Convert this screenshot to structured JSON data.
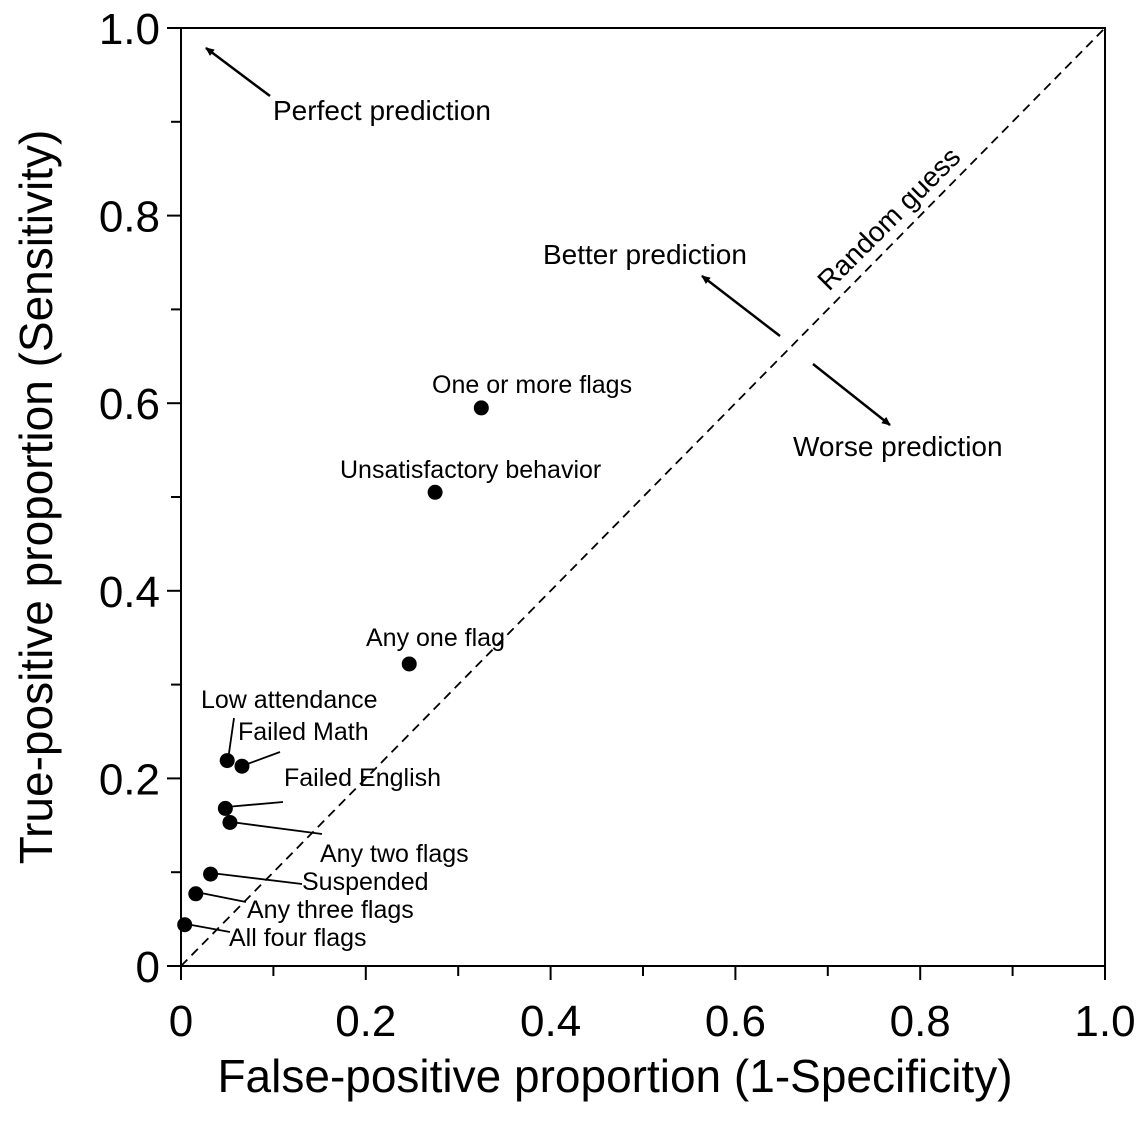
{
  "chart_data": {
    "type": "scatter",
    "title": "",
    "xlabel": "False-positive proportion (1-Specificity)",
    "ylabel": "True-positive proportion (Sensitivity)",
    "xlim": [
      0,
      1.0
    ],
    "ylim": [
      0,
      1.0
    ],
    "x_ticks": [
      "0",
      "0.2",
      "0.4",
      "0.6",
      "0.8",
      "1.0"
    ],
    "y_ticks": [
      "0",
      "0.2",
      "0.4",
      "0.6",
      "0.8",
      "1.0"
    ],
    "grid": false,
    "legend": "none",
    "reference_line": {
      "label": "Random guess",
      "style": "dashed",
      "from": [
        0,
        0
      ],
      "to": [
        1,
        1
      ]
    },
    "points": [
      {
        "label": "One or more flags",
        "x": 0.325,
        "y": 0.595
      },
      {
        "label": "Unsatisfactory behavior",
        "x": 0.275,
        "y": 0.505
      },
      {
        "label": "Any one flag",
        "x": 0.247,
        "y": 0.322
      },
      {
        "label": "Low attendance",
        "x": 0.05,
        "y": 0.219
      },
      {
        "label": "Failed Math",
        "x": 0.066,
        "y": 0.213
      },
      {
        "label": "Failed English",
        "x": 0.048,
        "y": 0.168
      },
      {
        "label": "Any two flags",
        "x": 0.053,
        "y": 0.153
      },
      {
        "label": "Suspended",
        "x": 0.032,
        "y": 0.098
      },
      {
        "label": "Any three flags",
        "x": 0.016,
        "y": 0.077
      },
      {
        "label": "All four flags",
        "x": 0.004,
        "y": 0.044
      }
    ],
    "annotations": [
      {
        "text": "Perfect prediction"
      },
      {
        "text": "Better prediction"
      },
      {
        "text": "Worse prediction"
      }
    ]
  }
}
